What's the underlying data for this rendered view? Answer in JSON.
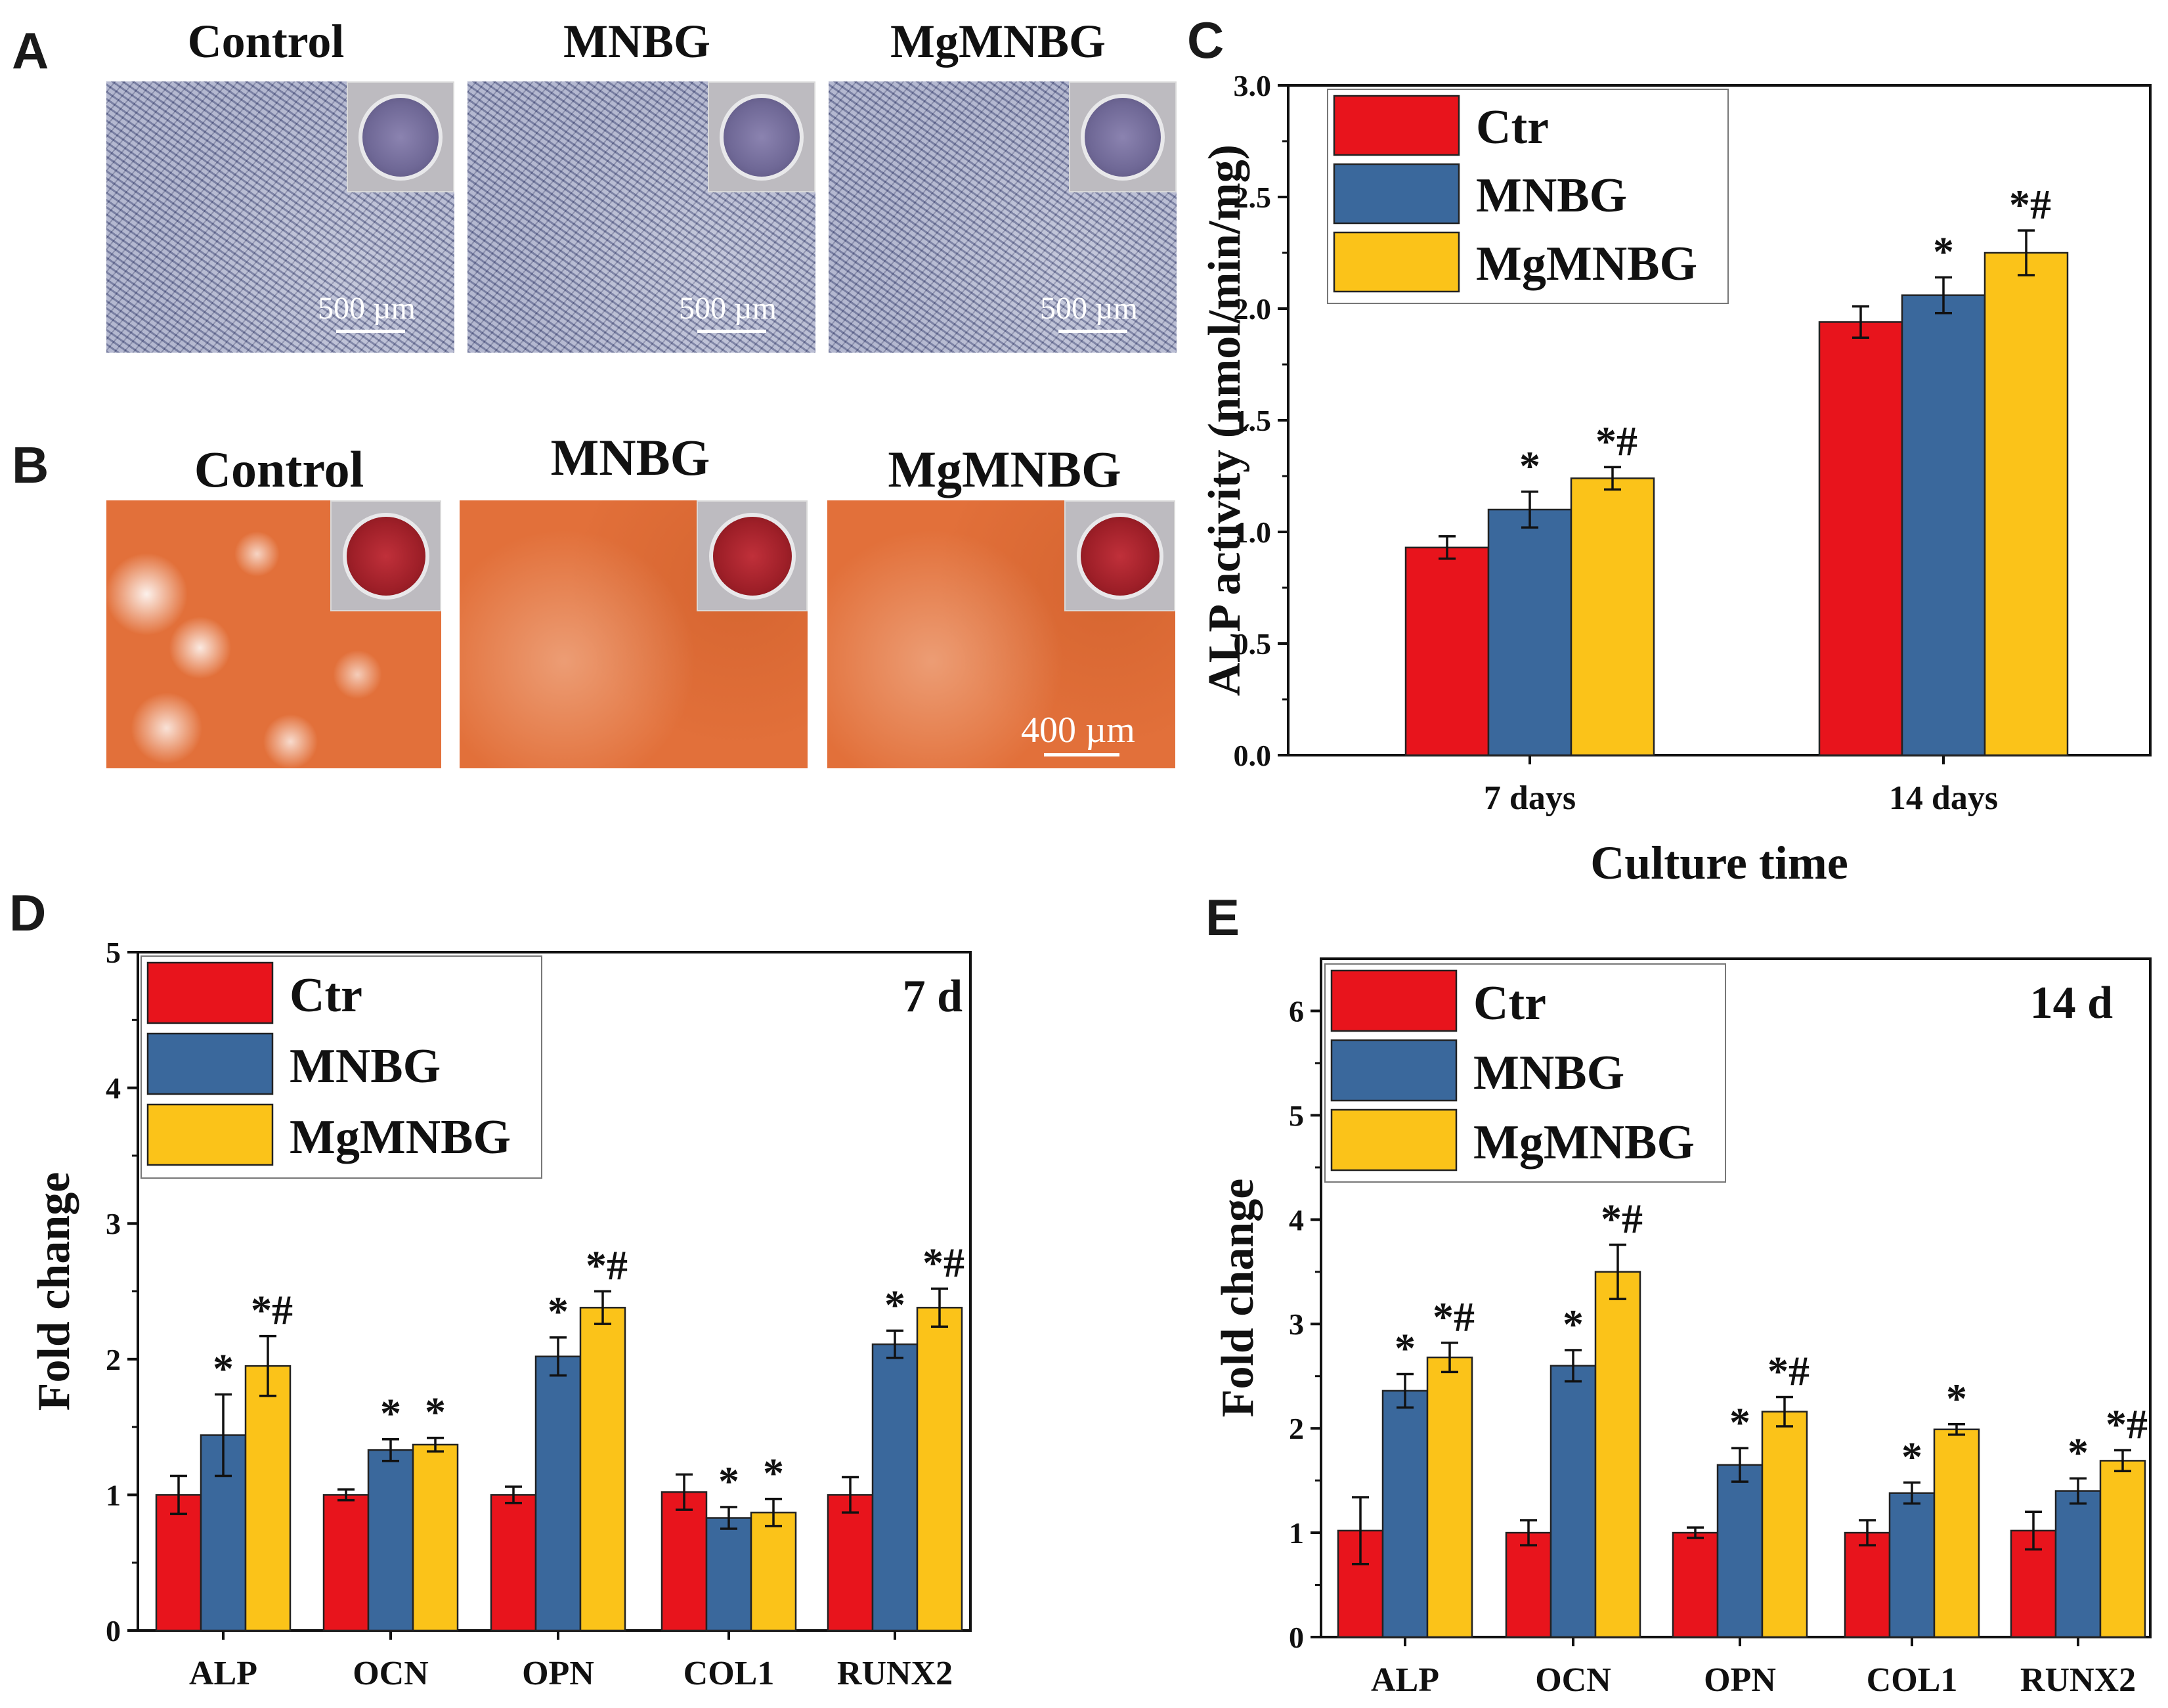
{
  "panels": {
    "A": {
      "letter": "A",
      "images": [
        {
          "title": "Control",
          "scale_label": "500 µm"
        },
        {
          "title": "MNBG",
          "scale_label": "500 µm"
        },
        {
          "title": "MgMNBG",
          "scale_label": "500 µm"
        }
      ]
    },
    "B": {
      "letter": "B",
      "images": [
        {
          "title": "Control"
        },
        {
          "title": "MNBG"
        },
        {
          "title": "MgMNBG",
          "scale_label": "400 µm"
        }
      ]
    },
    "C": {
      "letter": "C"
    },
    "D": {
      "letter": "D"
    },
    "E": {
      "letter": "E"
    }
  },
  "colors": {
    "ctr": "#e8141c",
    "mnbg": "#3a689c",
    "mgmnbg": "#fbc319"
  },
  "chart_data": [
    {
      "id": "C",
      "type": "bar",
      "title": "",
      "xlabel": "Culture time",
      "ylabel": "ALP activity (nmol/min/mg)",
      "categories": [
        "7 days",
        "14 days"
      ],
      "ylim": [
        0,
        3.0
      ],
      "yticks": [
        "0.0",
        "0.5",
        "1.0",
        "1.5",
        "2.0",
        "2.5",
        "3.0"
      ],
      "legend": [
        "Ctr",
        "MNBG",
        "MgMNBG"
      ],
      "legend_position": "top-left",
      "series": [
        {
          "name": "Ctr",
          "values": [
            0.93,
            1.94
          ],
          "errors": [
            0.05,
            0.07
          ],
          "marks": [
            "",
            ""
          ]
        },
        {
          "name": "MNBG",
          "values": [
            1.1,
            2.06
          ],
          "errors": [
            0.08,
            0.08
          ],
          "marks": [
            "*",
            "*"
          ]
        },
        {
          "name": "MgMNBG",
          "values": [
            1.24,
            2.25
          ],
          "errors": [
            0.05,
            0.1
          ],
          "marks": [
            "*#",
            "*#"
          ]
        }
      ]
    },
    {
      "id": "D",
      "type": "bar",
      "title": "7 d",
      "xlabel": "",
      "ylabel": "Fold change",
      "categories": [
        "ALP",
        "OCN",
        "OPN",
        "COL1",
        "RUNX2"
      ],
      "ylim": [
        0,
        5
      ],
      "yticks": [
        "0",
        "1",
        "2",
        "3",
        "4",
        "5"
      ],
      "legend": [
        "Ctr",
        "MNBG",
        "MgMNBG"
      ],
      "legend_position": "top-left",
      "series": [
        {
          "name": "Ctr",
          "values": [
            1.0,
            1.0,
            1.0,
            1.02,
            1.0
          ],
          "errors": [
            0.14,
            0.04,
            0.06,
            0.13,
            0.13
          ],
          "marks": [
            "",
            "",
            "",
            "",
            ""
          ]
        },
        {
          "name": "MNBG",
          "values": [
            1.44,
            1.33,
            2.02,
            0.83,
            2.11
          ],
          "errors": [
            0.3,
            0.08,
            0.14,
            0.08,
            0.1
          ],
          "marks": [
            "*",
            "*",
            "*",
            "*",
            "*"
          ]
        },
        {
          "name": "MgMNBG",
          "values": [
            1.95,
            1.37,
            2.38,
            0.87,
            2.38
          ],
          "errors": [
            0.22,
            0.05,
            0.12,
            0.1,
            0.14
          ],
          "marks": [
            "*#",
            "*",
            "*#",
            "*",
            "*#"
          ]
        }
      ]
    },
    {
      "id": "E",
      "type": "bar",
      "title": "14 d",
      "xlabel": "",
      "ylabel": "Fold change",
      "categories": [
        "ALP",
        "OCN",
        "OPN",
        "COL1",
        "RUNX2"
      ],
      "ylim": [
        0,
        6.5
      ],
      "yticks": [
        "0",
        "1",
        "2",
        "3",
        "4",
        "5",
        "6"
      ],
      "legend": [
        "Ctr",
        "MNBG",
        "MgMNBG"
      ],
      "legend_position": "top-left",
      "series": [
        {
          "name": "Ctr",
          "values": [
            1.02,
            1.0,
            1.0,
            1.0,
            1.02
          ],
          "errors": [
            0.32,
            0.12,
            0.05,
            0.12,
            0.18
          ],
          "marks": [
            "",
            "",
            "",
            "",
            ""
          ]
        },
        {
          "name": "MNBG",
          "values": [
            2.36,
            2.6,
            1.65,
            1.38,
            1.4
          ],
          "errors": [
            0.16,
            0.15,
            0.16,
            0.1,
            0.12
          ],
          "marks": [
            "*",
            "*",
            "*",
            "*",
            "*"
          ]
        },
        {
          "name": "MgMNBG",
          "values": [
            2.68,
            3.5,
            2.16,
            1.99,
            1.69
          ],
          "errors": [
            0.14,
            0.26,
            0.14,
            0.05,
            0.1
          ],
          "marks": [
            "*#",
            "*#",
            "*#",
            "*",
            "*#"
          ]
        }
      ]
    }
  ]
}
